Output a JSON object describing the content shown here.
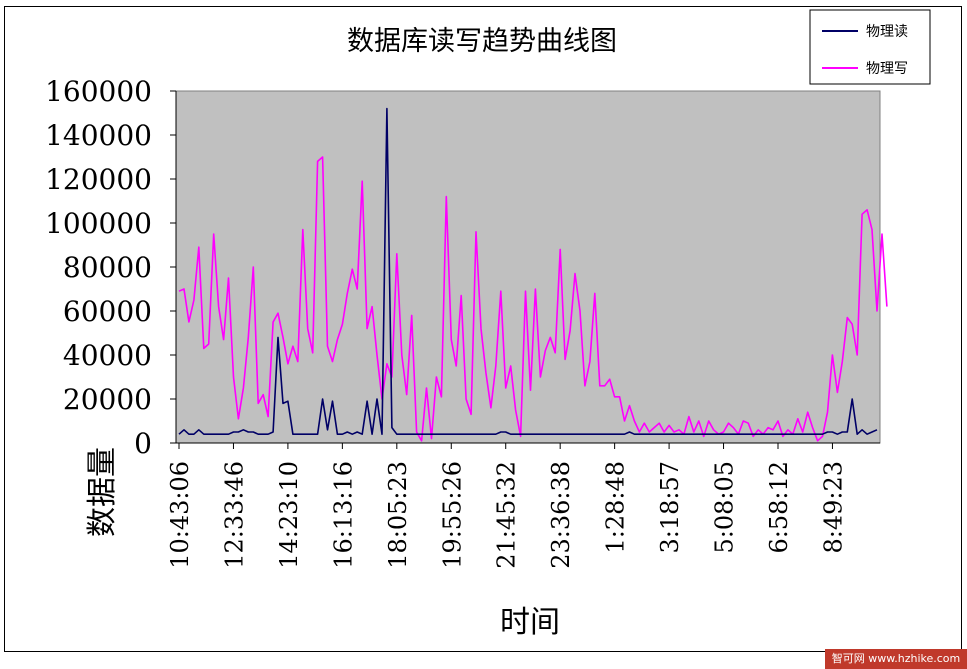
{
  "chart_data": {
    "type": "line",
    "title": "数据库读写趋势曲线图",
    "xlabel": "时间",
    "ylabel": "数据量",
    "ylim": [
      0,
      160000
    ],
    "yticks": [
      0,
      20000,
      40000,
      60000,
      80000,
      100000,
      120000,
      140000,
      160000
    ],
    "xticks": [
      "10:43:06",
      "12:33:46",
      "14:23:10",
      "16:13:16",
      "18:05:23",
      "19:55:26",
      "21:45:32",
      "23:36:38",
      "1:28:48",
      "3:18:57",
      "5:08:05",
      "6:58:12",
      "8:49:23"
    ],
    "xtick_index": [
      0,
      11,
      22,
      33,
      44,
      55,
      66,
      77,
      88,
      99,
      110,
      121,
      132
    ],
    "grid": false,
    "legend_position": "top-right",
    "series": [
      {
        "name": "物理读",
        "color": "#000066",
        "values": [
          4000,
          6000,
          4000,
          4000,
          6000,
          4000,
          4000,
          4000,
          4000,
          4000,
          4000,
          5000,
          5000,
          6000,
          5000,
          5000,
          4000,
          4000,
          4000,
          5000,
          48000,
          18000,
          19000,
          4000,
          4000,
          4000,
          4000,
          4000,
          4000,
          20000,
          6000,
          19000,
          4000,
          4000,
          5000,
          4000,
          5000,
          4000,
          19000,
          4000,
          20000,
          4000,
          152000,
          7000,
          4000,
          4000,
          4000,
          4000,
          4000,
          4000,
          4000,
          4000,
          4000,
          4000,
          4000,
          4000,
          4000,
          4000,
          4000,
          4000,
          4000,
          4000,
          4000,
          4000,
          4000,
          5000,
          5000,
          4000,
          4000,
          4000,
          4000,
          4000,
          4000,
          4000,
          4000,
          4000,
          4000,
          4000,
          4000,
          4000,
          4000,
          4000,
          4000,
          4000,
          4000,
          4000,
          4000,
          4000,
          4000,
          4000,
          4000,
          5000,
          4000,
          4000,
          4000,
          4000,
          4000,
          4000,
          4000,
          4000,
          4000,
          4000,
          4000,
          4000,
          4000,
          4000,
          4000,
          4000,
          4000,
          4000,
          4000,
          4000,
          4000,
          4000,
          4000,
          4000,
          4000,
          4000,
          4000,
          4000,
          4000,
          4000,
          4000,
          4000,
          4000,
          4000,
          4000,
          4000,
          4000,
          4000,
          4000,
          5000,
          5000,
          4000,
          5000,
          5000,
          20000,
          4000,
          6000,
          4000,
          5000,
          6000
        ]
      },
      {
        "name": "物理写",
        "color": "#ff00ff",
        "values": [
          69000,
          70000,
          55000,
          65000,
          89000,
          43000,
          45000,
          95000,
          62000,
          47000,
          75000,
          30000,
          11000,
          25000,
          48000,
          80000,
          18000,
          22000,
          12000,
          55000,
          59000,
          48000,
          36000,
          44000,
          37000,
          97000,
          52000,
          41000,
          128000,
          130000,
          44000,
          37000,
          47000,
          54000,
          68000,
          79000,
          70000,
          119000,
          52000,
          62000,
          40000,
          20000,
          36000,
          30000,
          86000,
          40000,
          22000,
          58000,
          5000,
          1000,
          25000,
          2000,
          30000,
          21000,
          112000,
          47000,
          35000,
          67000,
          20000,
          13000,
          96000,
          52000,
          32000,
          16000,
          35000,
          69000,
          25000,
          35000,
          15000,
          3000,
          69000,
          24000,
          70000,
          30000,
          42000,
          48000,
          41000,
          88000,
          38000,
          51000,
          77000,
          60000,
          26000,
          37000,
          68000,
          26000,
          26000,
          29000,
          21000,
          21000,
          10000,
          17000,
          10000,
          5000,
          9000,
          5000,
          7000,
          9000,
          5000,
          8000,
          5000,
          6000,
          4000,
          12000,
          5000,
          10000,
          3000,
          10000,
          6000,
          4000,
          5000,
          9000,
          7000,
          4000,
          10000,
          9000,
          3000,
          6000,
          4000,
          7000,
          6000,
          10000,
          3000,
          6000,
          4000,
          11000,
          5000,
          14000,
          7000,
          1000,
          3000,
          14000,
          40000,
          23000,
          37000,
          57000,
          54000,
          40000,
          104000,
          106000,
          97000,
          60000,
          95000,
          62000
        ]
      }
    ]
  },
  "watermark": "智可网 www.hzhike.com"
}
